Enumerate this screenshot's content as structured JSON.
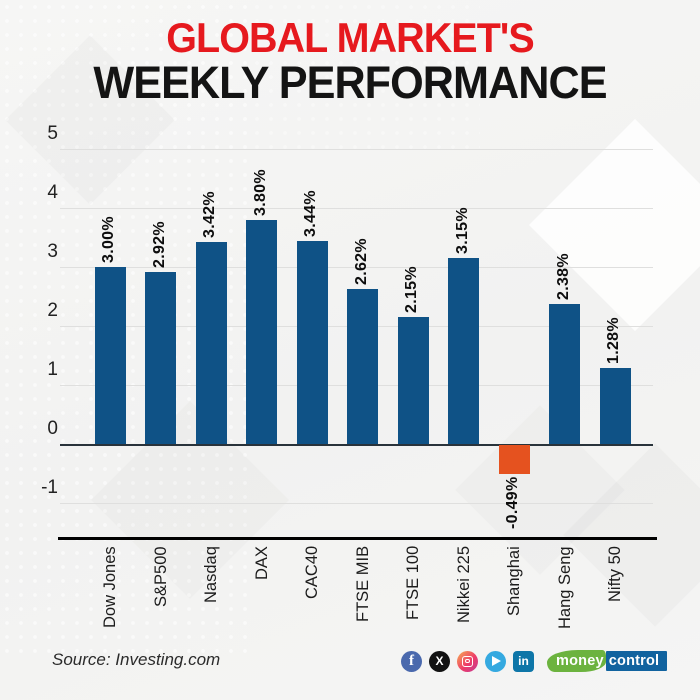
{
  "title": {
    "line1": "GLOBAL MARKET'S",
    "line2": "WEEKLY PERFORMANCE",
    "line1_color": "#e6191e",
    "line2_color": "#141414"
  },
  "chart_data": {
    "type": "bar",
    "title": "Global Market's Weekly Performance",
    "categories": [
      "Dow Jones",
      "S&P500",
      "Nasdaq",
      "DAX",
      "CAC40",
      "FTSE MIB",
      "FTSE 100",
      "Nikkei 225",
      "Shanghai",
      "Hang Seng",
      "Nifty 50"
    ],
    "values": [
      3.0,
      2.92,
      3.42,
      3.8,
      3.44,
      2.62,
      2.15,
      3.15,
      -0.49,
      2.38,
      1.28
    ],
    "value_labels": [
      "3.00%",
      "2.92%",
      "3.42%",
      "3.80%",
      "3.44%",
      "2.62%",
      "2.15%",
      "3.15%",
      "-0.49%",
      "2.38%",
      "1.28%"
    ],
    "y_ticks": [
      5,
      4,
      3,
      2,
      1,
      0,
      -1
    ],
    "ylim": [
      -1.6,
      5
    ],
    "xlabel": "",
    "ylabel": "",
    "grid": true,
    "legend": false,
    "bar_color": "#0f5286",
    "negative_bar_color": "#e5521f",
    "unit": "percent weekly change"
  },
  "footer": {
    "source": "Source: Investing.com",
    "social_icons": [
      "facebook-icon",
      "x-icon",
      "instagram-icon",
      "telegram-icon",
      "linkedin-icon"
    ],
    "icon_glyphs": {
      "facebook": "f",
      "x": "X",
      "linkedin": "in"
    },
    "brand": {
      "part1": "money",
      "part2": "control"
    }
  }
}
